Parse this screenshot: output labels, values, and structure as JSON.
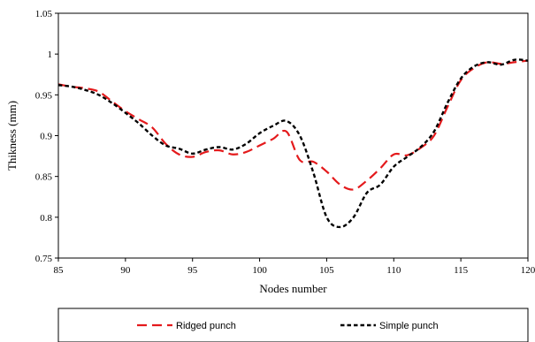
{
  "chart_data": {
    "type": "line",
    "xlabel": "Nodes number",
    "ylabel": "Thikness (mm)",
    "xlim": [
      85,
      120
    ],
    "ylim": [
      0.75,
      1.05
    ],
    "x_ticks": [
      85,
      90,
      95,
      100,
      105,
      110,
      115,
      120
    ],
    "y_ticks": [
      0.75,
      0.8,
      0.85,
      0.9,
      0.95,
      1,
      1.05
    ],
    "y_tick_labels": [
      "0.75",
      "0.8",
      "0.85",
      "0.9",
      "0.95",
      "1",
      "1.05"
    ],
    "grid": false,
    "legend_position": "bottom",
    "series": [
      {
        "name": "Ridged punch",
        "color": "#e41a1c",
        "line_style": "long-dash",
        "points": [
          [
            85,
            0.963
          ],
          [
            86,
            0.96
          ],
          [
            87,
            0.958
          ],
          [
            88,
            0.954
          ],
          [
            89,
            0.942
          ],
          [
            90,
            0.93
          ],
          [
            91,
            0.92
          ],
          [
            92,
            0.91
          ],
          [
            93,
            0.89
          ],
          [
            94,
            0.877
          ],
          [
            95,
            0.874
          ],
          [
            96,
            0.88
          ],
          [
            97,
            0.882
          ],
          [
            98,
            0.877
          ],
          [
            99,
            0.88
          ],
          [
            100,
            0.888
          ],
          [
            101,
            0.896
          ],
          [
            102,
            0.905
          ],
          [
            103,
            0.87
          ],
          [
            104,
            0.868
          ],
          [
            105,
            0.856
          ],
          [
            106,
            0.84
          ],
          [
            107,
            0.834
          ],
          [
            108,
            0.845
          ],
          [
            109,
            0.86
          ],
          [
            110,
            0.877
          ],
          [
            111,
            0.876
          ],
          [
            112,
            0.885
          ],
          [
            113,
            0.9
          ],
          [
            114,
            0.935
          ],
          [
            115,
            0.968
          ],
          [
            116,
            0.983
          ],
          [
            117,
            0.99
          ],
          [
            118,
            0.988
          ],
          [
            119,
            0.99
          ],
          [
            120,
            0.992
          ]
        ]
      },
      {
        "name": "Simple punch",
        "color": "#000000",
        "line_style": "short-dash",
        "points": [
          [
            85,
            0.962
          ],
          [
            86,
            0.96
          ],
          [
            87,
            0.956
          ],
          [
            88,
            0.95
          ],
          [
            89,
            0.94
          ],
          [
            90,
            0.928
          ],
          [
            91,
            0.915
          ],
          [
            92,
            0.9
          ],
          [
            93,
            0.888
          ],
          [
            94,
            0.884
          ],
          [
            95,
            0.878
          ],
          [
            96,
            0.883
          ],
          [
            97,
            0.886
          ],
          [
            98,
            0.883
          ],
          [
            99,
            0.89
          ],
          [
            100,
            0.903
          ],
          [
            101,
            0.912
          ],
          [
            102,
            0.918
          ],
          [
            103,
            0.9
          ],
          [
            104,
            0.855
          ],
          [
            105,
            0.8
          ],
          [
            106,
            0.788
          ],
          [
            107,
            0.8
          ],
          [
            108,
            0.83
          ],
          [
            109,
            0.84
          ],
          [
            110,
            0.862
          ],
          [
            111,
            0.874
          ],
          [
            112,
            0.886
          ],
          [
            113,
            0.905
          ],
          [
            114,
            0.94
          ],
          [
            115,
            0.97
          ],
          [
            116,
            0.985
          ],
          [
            117,
            0.99
          ],
          [
            118,
            0.987
          ],
          [
            119,
            0.993
          ],
          [
            120,
            0.992
          ]
        ]
      }
    ]
  }
}
